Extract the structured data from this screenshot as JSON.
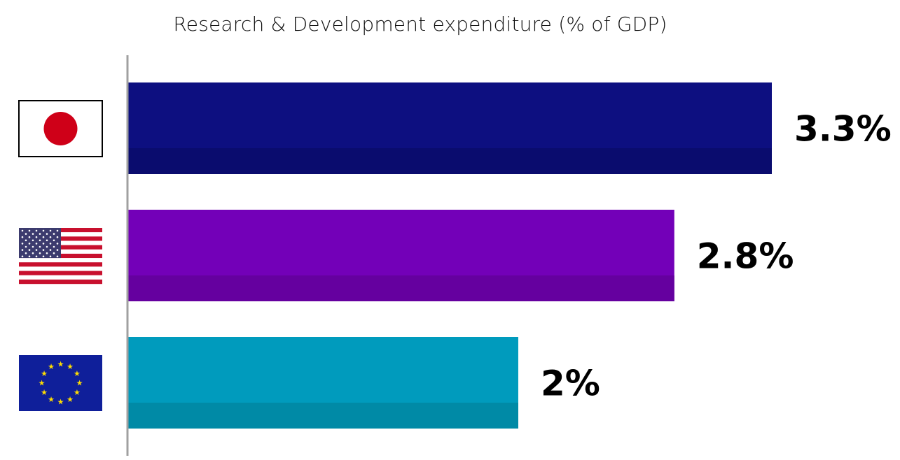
{
  "chart_data": {
    "type": "bar",
    "orientation": "horizontal",
    "title": "Research & Development expenditure (% of GDP)",
    "xlabel": "",
    "ylabel": "",
    "xlim": [
      0,
      3.3
    ],
    "grid": false,
    "legend": "none",
    "categories": [
      "Japan",
      "United States",
      "European Union"
    ],
    "category_icons": [
      "japan-flag-icon",
      "usa-flag-icon",
      "eu-flag-icon"
    ],
    "values": [
      3.3,
      2.8,
      2.0
    ],
    "value_labels": [
      "3.3%",
      "2.8%",
      "2%"
    ],
    "colors": [
      "#0d0f80",
      "#7300b8",
      "#009bbd"
    ],
    "shade_colors": [
      "#0a0c6e",
      "#65009f",
      "#008aa6"
    ]
  }
}
